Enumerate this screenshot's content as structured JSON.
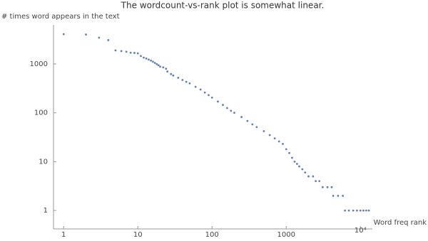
{
  "chart_data": {
    "type": "scatter",
    "title": "The wordcount-vs-rank plot is somewhat linear.",
    "y_label": "# times word appears in the text",
    "x_label": "Word freq rank",
    "x": [
      1,
      2,
      3,
      4,
      5,
      6,
      7,
      8,
      9,
      10,
      11,
      12,
      13,
      14,
      15,
      16,
      17,
      18,
      19,
      20,
      22,
      24,
      25,
      28,
      30,
      35,
      40,
      45,
      50,
      60,
      70,
      80,
      90,
      100,
      120,
      140,
      160,
      180,
      200,
      250,
      300,
      350,
      400,
      500,
      600,
      700,
      800,
      900,
      1000,
      1100,
      1200,
      1300,
      1400,
      1500,
      1650,
      1800,
      2000,
      2300,
      2500,
      2800,
      3100,
      3600,
      4100,
      4300,
      5000,
      5800,
      6200,
      7000,
      8000,
      9000,
      10000,
      11000,
      12000,
      13000
    ],
    "series": [
      {
        "color": "#5e81b5",
        "values": [
          4070,
          4000,
          3450,
          3070,
          1890,
          1830,
          1780,
          1700,
          1680,
          1650,
          1450,
          1350,
          1290,
          1230,
          1170,
          1110,
          1050,
          990,
          940,
          880,
          850,
          800,
          700,
          620,
          580,
          520,
          470,
          430,
          400,
          340,
          300,
          260,
          230,
          205,
          170,
          145,
          125,
          110,
          100,
          82,
          68,
          58,
          51,
          42,
          35,
          30,
          26,
          23,
          18,
          15,
          12,
          10,
          9,
          8,
          7,
          6,
          5,
          5,
          4,
          4,
          3,
          3,
          3,
          2,
          2,
          2,
          1,
          1,
          1,
          1,
          1,
          1,
          1,
          1
        ]
      }
    ],
    "log_x": true,
    "log_y": true,
    "xlim": [
      0.73,
      14500
    ],
    "ylim": [
      0.42,
      6300
    ],
    "xticks": [
      1,
      10,
      100,
      1000,
      {
        "value": 10000,
        "label": "10⁴"
      }
    ],
    "yticks": [
      1,
      10,
      100,
      1000
    ]
  }
}
